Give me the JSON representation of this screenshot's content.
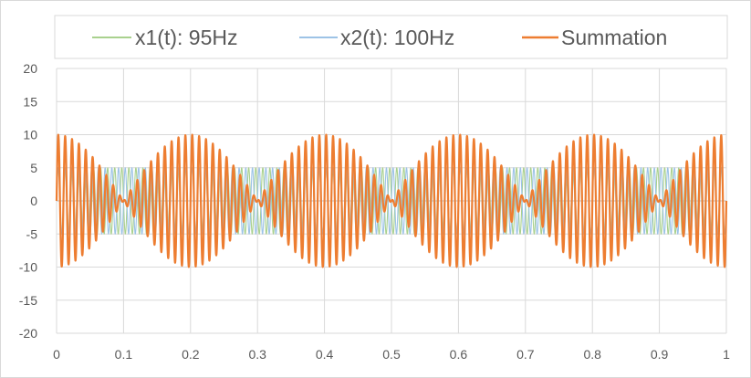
{
  "chart_data": {
    "type": "line",
    "title": "",
    "xlabel": "",
    "ylabel": "",
    "xlim": [
      0,
      1
    ],
    "ylim": [
      -20,
      20
    ],
    "x_ticks": [
      "0",
      "0.1",
      "0.2",
      "0.3",
      "0.4",
      "0.5",
      "0.6",
      "0.7",
      "0.8",
      "0.9",
      "1"
    ],
    "y_ticks": [
      "20",
      "15",
      "10",
      "5",
      "0",
      "-5",
      "-10",
      "-15",
      "-20"
    ],
    "grid": true,
    "legend_position": "top",
    "series": [
      {
        "name": "x1(t): 95Hz",
        "function": "5*sin(2*pi*95*t)",
        "amplitude": 5,
        "frequency_hz": 95,
        "color": "#a9d18e"
      },
      {
        "name": "x2(t): 100Hz",
        "function": "5*sin(2*pi*100*t)",
        "amplitude": 5,
        "frequency_hz": 100,
        "color": "#9dc3e6"
      },
      {
        "name": "Summation",
        "function": "x1(t) + x2(t)",
        "amplitude": 10,
        "color": "#ed7d31"
      }
    ]
  }
}
